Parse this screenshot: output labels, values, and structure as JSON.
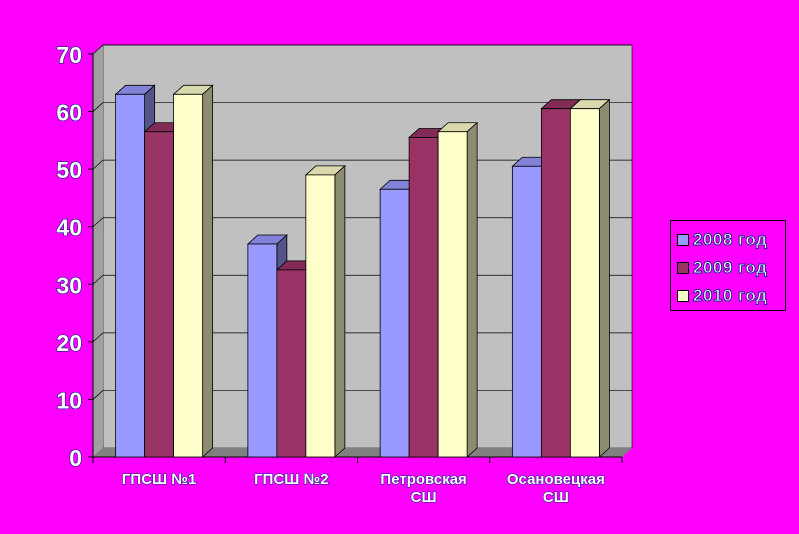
{
  "chart_data": {
    "type": "bar",
    "categories": [
      "ГПСШ №1",
      "ГПСШ №2",
      "Петровская СШ",
      "Осановецкая СШ"
    ],
    "category_lines": [
      [
        "ГПСШ №1"
      ],
      [
        "ГПСШ №2"
      ],
      [
        "Петровская",
        "СШ"
      ],
      [
        "Осановецкая",
        "СШ"
      ]
    ],
    "series": [
      {
        "name": "2008 год",
        "values": [
          63,
          37,
          46.5,
          50.5
        ],
        "color": "#9999ff"
      },
      {
        "name": "2009 год",
        "values": [
          56.5,
          32.5,
          55.5,
          60.5
        ],
        "color": "#993366"
      },
      {
        "name": "2010 год",
        "values": [
          63,
          49,
          56.5,
          60.5
        ],
        "color": "#ffffcc"
      }
    ],
    "ylim": [
      0,
      70
    ],
    "yticks": [
      "0",
      "10",
      "20",
      "30",
      "40",
      "50",
      "60",
      "70"
    ],
    "grid": true,
    "legend_position": "right",
    "three_d": true,
    "colors": {
      "background": "#ff00ff",
      "plot_wall": "#c0c0c0",
      "floor": "#808080"
    }
  }
}
